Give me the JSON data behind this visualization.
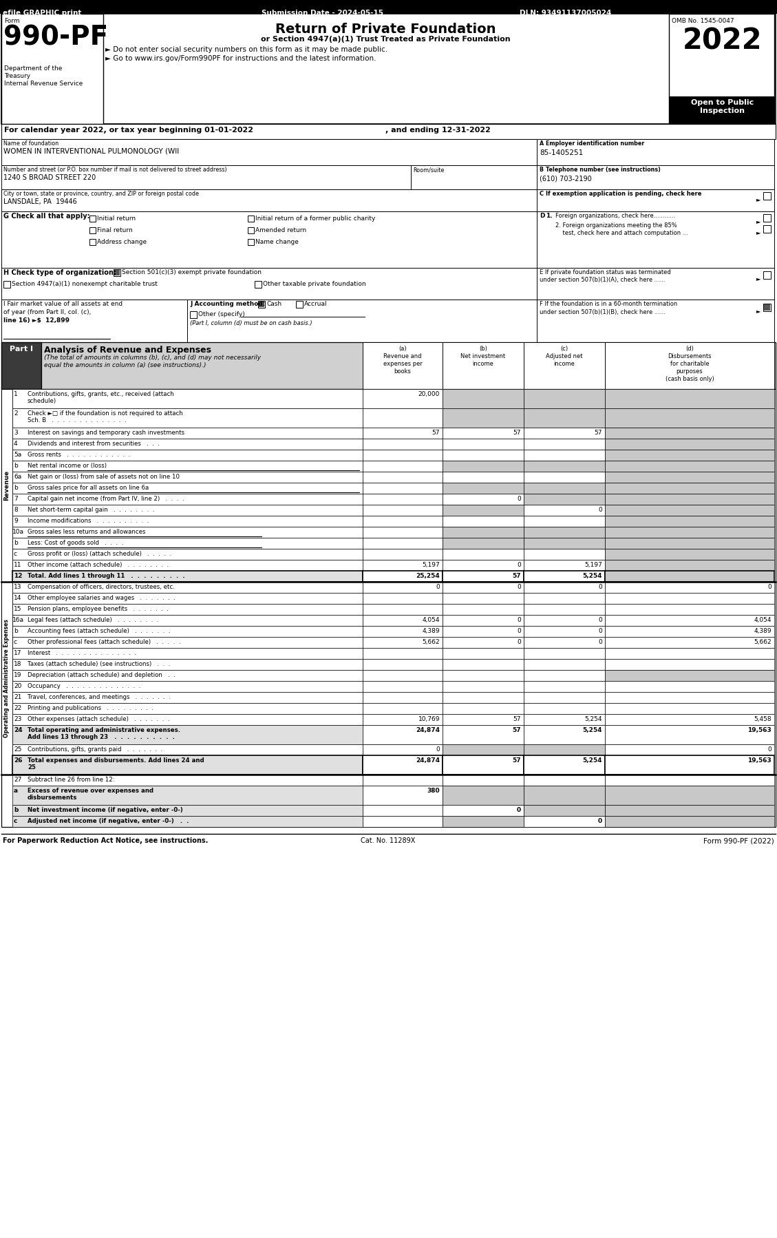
{
  "header_left": "efile GRAPHIC print",
  "header_center": "Submission Date - 2024-05-15",
  "header_right": "DLN: 93491137005024",
  "form_label": "Form",
  "form_number": "990-PF",
  "dept1": "Department of the",
  "dept2": "Treasury",
  "dept3": "Internal Revenue Service",
  "title": "Return of Private Foundation",
  "subtitle1": "or Section 4947(a)(1) Trust Treated as Private Foundation",
  "subtitle2": "► Do not enter social security numbers on this form as it may be made public.",
  "subtitle3": "► Go to www.irs.gov/Form990PF for instructions and the latest information.",
  "omb": "OMB No. 1545-0047",
  "year": "2022",
  "open_public": "Open to Public",
  "inspection": "Inspection",
  "cal_year": "For calendar year 2022, or tax year beginning 01-01-2022",
  "cal_year2": ", and ending 12-31-2022",
  "name_label": "Name of foundation",
  "name_val": "WOMEN IN INTERVENTIONAL PULMONOLOGY (WII",
  "ein_label": "A Employer identification number",
  "ein_val": "85-1405251",
  "addr_label": "Number and street (or P.O. box number if mail is not delivered to street address)",
  "room_label": "Room/suite",
  "addr_val": "1240 S BROAD STREET 220",
  "phone_label": "B Telephone number (see instructions)",
  "phone_val": "(610) 703-2190",
  "city_label": "City or town, state or province, country, and ZIP or foreign postal code",
  "city_val": "LANSDALE, PA  19446",
  "c_text": "C If exemption application is pending, check here",
  "g_label": "G Check all that apply:",
  "d1_text": "D 1. Foreign organizations, check here............",
  "d2_text": "2. Foreign organizations meeting the 85%",
  "d2b_text": "    test, check here and attach computation ...",
  "h_label": "H Check type of organization:",
  "h_opt1": "Section 501(c)(3) exempt private foundation",
  "h_opt2": "Section 4947(a)(1) nonexempt charitable trust",
  "h_opt3": "Other taxable private foundation",
  "e_text1": "E If private foundation status was terminated",
  "e_text2": "under section 507(b)(1)(A), check here ......",
  "i_text1": "I Fair market value of all assets at end",
  "i_text2": "of year (from Part II, col. (c),",
  "i_text3": "line 16) ►$  12,899",
  "j_label": "J Accounting method:",
  "j_note": "(Part I, column (d) must be on cash basis.)",
  "f_text1": "F If the foundation is in a 60-month termination",
  "f_text2": "under section 507(b)(1)(B), check here ......",
  "part1_label": "Part I",
  "part1_title": "Analysis of Revenue and Expenses",
  "part1_note": "(The total of amounts in columns (b), (c), and (d) may not necessarily",
  "part1_note2": "equal the amounts in column (a) (see instructions).)",
  "col_a1": "(a)",
  "col_a2": "Revenue and",
  "col_a3": "expenses per",
  "col_a4": "books",
  "col_b1": "(b)",
  "col_b2": "Net investment",
  "col_b3": "income",
  "col_c1": "(c)",
  "col_c2": "Adjusted net",
  "col_c3": "income",
  "col_d1": "(d)",
  "col_d2": "Disbursements",
  "col_d3": "for charitable",
  "col_d4": "purposes",
  "col_d5": "(cash basis only)",
  "rows": [
    {
      "num": "1",
      "label": "Contributions, gifts, grants, etc., received (attach",
      "label2": "schedule)",
      "a": "20,000",
      "b": "",
      "c": "",
      "d": "",
      "bgb": true,
      "bgc": true,
      "bgd": true,
      "bold": false
    },
    {
      "num": "2",
      "label": "Check ►□ if the foundation is not required to attach",
      "label2": "Sch. B   .  .  .  .  .  .  .  .  .  .  .  .  .  .",
      "a": "",
      "b": "",
      "c": "",
      "d": "",
      "bgb": true,
      "bgc": true,
      "bgd": true,
      "bold": false
    },
    {
      "num": "3",
      "label": "Interest on savings and temporary cash investments",
      "label2": "",
      "a": "57",
      "b": "57",
      "c": "57",
      "d": "",
      "bgb": false,
      "bgc": false,
      "bgd": true,
      "bold": false
    },
    {
      "num": "4",
      "label": "Dividends and interest from securities   .  .  .",
      "label2": "",
      "a": "",
      "b": "",
      "c": "",
      "d": "",
      "bgb": false,
      "bgc": false,
      "bgd": true,
      "bold": false
    },
    {
      "num": "5a",
      "label": "Gross rents   .  .  .  .  .  .  .  .  .  .  .  .",
      "label2": "",
      "a": "",
      "b": "",
      "c": "",
      "d": "",
      "bgb": false,
      "bgc": false,
      "bgd": true,
      "bold": false
    },
    {
      "num": "b",
      "label": "Net rental income or (loss)",
      "label2": "",
      "a": "",
      "b": "",
      "c": "",
      "d": "",
      "bgb": true,
      "bgc": true,
      "bgd": true,
      "bold": false
    },
    {
      "num": "6a",
      "label": "Net gain or (loss) from sale of assets not on line 10",
      "label2": "",
      "a": "",
      "b": "",
      "c": "",
      "d": "",
      "bgb": false,
      "bgc": false,
      "bgd": true,
      "bold": false
    },
    {
      "num": "b",
      "label": "Gross sales price for all assets on line 6a",
      "label2": "",
      "a": "",
      "b": "",
      "c": "",
      "d": "",
      "bgb": true,
      "bgc": true,
      "bgd": true,
      "bold": false
    },
    {
      "num": "7",
      "label": "Capital gain net income (from Part IV, line 2)   .  .  .  .",
      "label2": "",
      "a": "",
      "b": "0",
      "c": "",
      "d": "",
      "bgb": false,
      "bgc": true,
      "bgd": true,
      "bold": false
    },
    {
      "num": "8",
      "label": "Net short-term capital gain   .  .  .  .  .  .  .  .",
      "label2": "",
      "a": "",
      "b": "",
      "c": "0",
      "d": "",
      "bgb": true,
      "bgc": false,
      "bgd": true,
      "bold": false
    },
    {
      "num": "9",
      "label": "Income modifications   .  .  .  .  .  .  .  .  .  .",
      "label2": "",
      "a": "",
      "b": "",
      "c": "",
      "d": "",
      "bgb": false,
      "bgc": false,
      "bgd": true,
      "bold": false
    },
    {
      "num": "10a",
      "label": "Gross sales less returns and allowances",
      "label2": "",
      "a": "",
      "b": "",
      "c": "",
      "d": "",
      "bgb": true,
      "bgc": true,
      "bgd": true,
      "bold": false
    },
    {
      "num": "b",
      "label": "Less: Cost of goods sold   .  .  .  .",
      "label2": "",
      "a": "",
      "b": "",
      "c": "",
      "d": "",
      "bgb": true,
      "bgc": true,
      "bgd": true,
      "bold": false
    },
    {
      "num": "c",
      "label": "Gross profit or (loss) (attach schedule)   .  .  .  .  .",
      "label2": "",
      "a": "",
      "b": "",
      "c": "",
      "d": "",
      "bgb": false,
      "bgc": false,
      "bgd": true,
      "bold": false
    },
    {
      "num": "11",
      "label": "Other income (attach schedule)   .  .  .  .  .  .  .  .",
      "label2": "",
      "a": "5,197",
      "b": "0",
      "c": "5,197",
      "d": "",
      "bgb": false,
      "bgc": false,
      "bgd": true,
      "bold": false
    },
    {
      "num": "12",
      "label": "Total. Add lines 1 through 11   .  .  .  .  .  .  .  .  .",
      "label2": "",
      "a": "25,254",
      "b": "57",
      "c": "5,254",
      "d": "",
      "bgb": false,
      "bgc": false,
      "bgd": true,
      "bold": true
    },
    {
      "num": "13",
      "label": "Compensation of officers, directors, trustees, etc.",
      "label2": "",
      "a": "0",
      "b": "0",
      "c": "0",
      "d": "0",
      "bgb": false,
      "bgc": false,
      "bgd": false,
      "bold": false
    },
    {
      "num": "14",
      "label": "Other employee salaries and wages   .  .  .  .  .  .  .",
      "label2": "",
      "a": "",
      "b": "",
      "c": "",
      "d": "",
      "bgb": false,
      "bgc": false,
      "bgd": false,
      "bold": false
    },
    {
      "num": "15",
      "label": "Pension plans, employee benefits   .  .  .  .  .  .  .",
      "label2": "",
      "a": "",
      "b": "",
      "c": "",
      "d": "",
      "bgb": false,
      "bgc": false,
      "bgd": false,
      "bold": false
    },
    {
      "num": "16a",
      "label": "Legal fees (attach schedule)   .  .  .  .  .  .  .  .",
      "label2": "",
      "a": "4,054",
      "b": "0",
      "c": "0",
      "d": "4,054",
      "bgb": false,
      "bgc": false,
      "bgd": false,
      "bold": false
    },
    {
      "num": "b",
      "label": "Accounting fees (attach schedule)   .  .  .  .  .  .  .",
      "label2": "",
      "a": "4,389",
      "b": "0",
      "c": "0",
      "d": "4,389",
      "bgb": false,
      "bgc": false,
      "bgd": false,
      "bold": false
    },
    {
      "num": "c",
      "label": "Other professional fees (attach schedule)   .  .  .  .  .",
      "label2": "",
      "a": "5,662",
      "b": "0",
      "c": "0",
      "d": "5,662",
      "bgb": false,
      "bgc": false,
      "bgd": false,
      "bold": false
    },
    {
      "num": "17",
      "label": "Interest   .  .  .  .  .  .  .  .  .  .  .  .  .  .  .",
      "label2": "",
      "a": "",
      "b": "",
      "c": "",
      "d": "",
      "bgb": false,
      "bgc": false,
      "bgd": false,
      "bold": false
    },
    {
      "num": "18",
      "label": "Taxes (attach schedule) (see instructions)   .  .  .",
      "label2": "",
      "a": "",
      "b": "",
      "c": "",
      "d": "",
      "bgb": false,
      "bgc": false,
      "bgd": false,
      "bold": false
    },
    {
      "num": "19",
      "label": "Depreciation (attach schedule) and depletion   .  .",
      "label2": "",
      "a": "",
      "b": "",
      "c": "",
      "d": "",
      "bgb": false,
      "bgc": false,
      "bgd": true,
      "bold": false
    },
    {
      "num": "20",
      "label": "Occupancy   .  .  .  .  .  .  .  .  .  .  .  .  .  .",
      "label2": "",
      "a": "",
      "b": "",
      "c": "",
      "d": "",
      "bgb": false,
      "bgc": false,
      "bgd": false,
      "bold": false
    },
    {
      "num": "21",
      "label": "Travel, conferences, and meetings   .  .  .  .  .  .  .",
      "label2": "",
      "a": "",
      "b": "",
      "c": "",
      "d": "",
      "bgb": false,
      "bgc": false,
      "bgd": false,
      "bold": false
    },
    {
      "num": "22",
      "label": "Printing and publications   .  .  .  .  .  .  .  .  .",
      "label2": "",
      "a": "",
      "b": "",
      "c": "",
      "d": "",
      "bgb": false,
      "bgc": false,
      "bgd": false,
      "bold": false
    },
    {
      "num": "23",
      "label": "Other expenses (attach schedule)   .  .  .  .  .  .  .",
      "label2": "",
      "a": "10,769",
      "b": "57",
      "c": "5,254",
      "d": "5,458",
      "bgb": false,
      "bgc": false,
      "bgd": false,
      "bold": false
    },
    {
      "num": "24",
      "label": "Total operating and administrative expenses.",
      "label2": "Add lines 13 through 23   .  .  .  .  .  .  .  .  .  .",
      "a": "24,874",
      "b": "57",
      "c": "5,254",
      "d": "19,563",
      "bgb": false,
      "bgc": false,
      "bgd": false,
      "bold": true
    },
    {
      "num": "25",
      "label": "Contributions, gifts, grants paid   .  .  .  .  .  .  .",
      "label2": "",
      "a": "0",
      "b": "",
      "c": "",
      "d": "0",
      "bgb": true,
      "bgc": true,
      "bgd": false,
      "bold": false
    },
    {
      "num": "26",
      "label": "Total expenses and disbursements. Add lines 24 and",
      "label2": "25",
      "a": "24,874",
      "b": "57",
      "c": "5,254",
      "d": "19,563",
      "bgb": false,
      "bgc": false,
      "bgd": false,
      "bold": true
    },
    {
      "num": "27",
      "label": "Subtract line 26 from line 12:",
      "label2": "",
      "a": "",
      "b": "",
      "c": "",
      "d": "",
      "bgb": false,
      "bgc": false,
      "bgd": false,
      "bold": false
    },
    {
      "num": "a",
      "label": "Excess of revenue over expenses and",
      "label2": "disbursements",
      "a": "380",
      "b": "",
      "c": "",
      "d": "",
      "bgb": true,
      "bgc": true,
      "bgd": true,
      "bold": true
    },
    {
      "num": "b",
      "label": "Net investment income (if negative, enter -0-)",
      "label2": "",
      "a": "",
      "b": "0",
      "c": "",
      "d": "",
      "bgb": false,
      "bgc": true,
      "bgd": true,
      "bold": true
    },
    {
      "num": "c",
      "label": "Adjusted net income (if negative, enter -0-)   .  .",
      "label2": "",
      "a": "",
      "b": "",
      "c": "0",
      "d": "",
      "bgb": true,
      "bgc": false,
      "bgd": true,
      "bold": true
    }
  ],
  "footer_left": "For Paperwork Reduction Act Notice, see instructions.",
  "footer_center": "Cat. No. 11289X",
  "footer_right": "Form 990-PF (2022)"
}
